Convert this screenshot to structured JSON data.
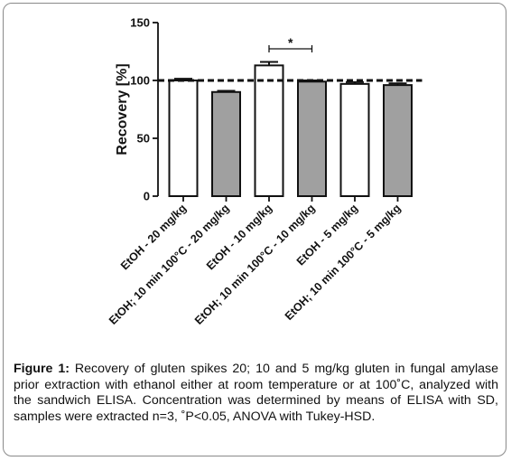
{
  "chart_data": {
    "type": "bar",
    "title": "",
    "ylabel": "Recovery [%]",
    "xlabel": "",
    "ylim": [
      0,
      150
    ],
    "yticks": [
      0,
      50,
      100,
      150
    ],
    "reference_line": 100,
    "categories": [
      "EtOH - 20 mg/kg",
      "EtOH; 10 min 100°C - 20 mg/kg",
      "EtOH - 10 mg/kg",
      "EtOH; 10 min 100°C - 10 mg/kg",
      "EtOH - 5 mg/kg",
      "EtOH; 10 min 100°C - 5 mg/kg"
    ],
    "values": [
      100,
      90,
      113,
      99,
      97,
      96
    ],
    "errors": [
      1.5,
      1.0,
      3.0,
      1.0,
      1.5,
      1.5
    ],
    "bar_colors": [
      "#ffffff",
      "#a0a0a0",
      "#ffffff",
      "#a0a0a0",
      "#ffffff",
      "#a0a0a0"
    ],
    "significance": {
      "from": 2,
      "to": 3,
      "label": "*"
    }
  },
  "caption": {
    "label": "Figure 1:",
    "text": " Recovery of gluten spikes 20; 10 and 5 mg/kg gluten in fungal amylase prior extraction with ethanol either at room temperature or at 100˚C, analyzed with the sandwich ELISA. Concentration was determined by means of ELISA with SD, samples were extracted n=3, ˚P<0.05, ANOVA with Tukey-HSD."
  }
}
